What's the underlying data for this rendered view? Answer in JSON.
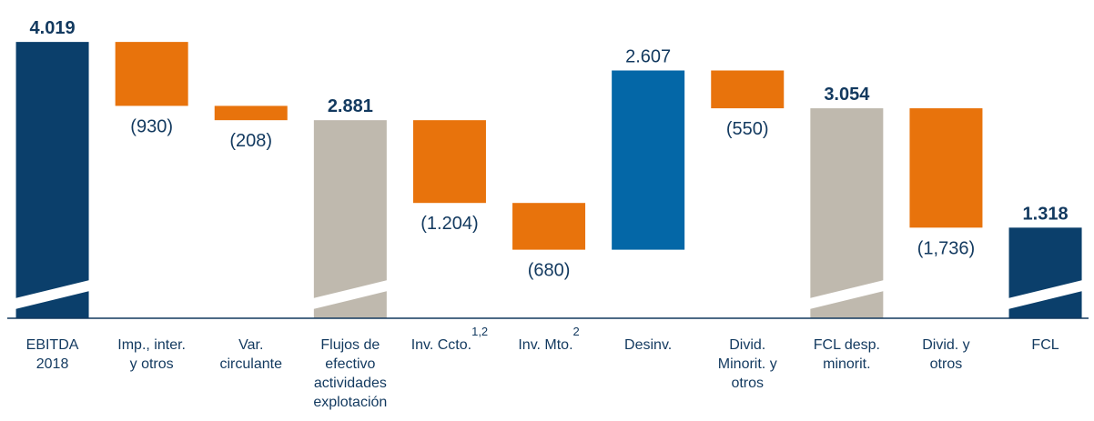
{
  "chart_data": {
    "type": "waterfall",
    "categories": [
      "EBITDA\n2018",
      "Imp., inter.\ny otros",
      "Var.\ncirculante",
      "Flujos de\nefectivo\nactividades\nexplotación",
      "Inv. Ccto.",
      "Inv. Mto.",
      "Desinv.",
      "Divid.\nMinorit. y\notros",
      "FCL desp.\nminorit.",
      "Divid. y\notros",
      "FCL"
    ],
    "footnotes": [
      null,
      null,
      null,
      null,
      "1,2",
      "2",
      null,
      null,
      null,
      null,
      null
    ],
    "values": [
      4019,
      -930,
      -208,
      2881,
      -1204,
      -680,
      2607,
      -550,
      3054,
      -1736,
      1318
    ],
    "value_labels": [
      "4.019",
      "(930)",
      "(208)",
      "2.881",
      "(1.204)",
      "(680)",
      "2.607",
      "(550)",
      "3.054",
      "(1,736)",
      "1.318"
    ],
    "totals": [
      true,
      false,
      false,
      true,
      false,
      false,
      false,
      false,
      true,
      false,
      true
    ],
    "colors": [
      "#0b3f6b",
      "#e8730c",
      "#e8730c",
      "#bfb9ae",
      "#e8730c",
      "#e8730c",
      "#0467a7",
      "#e8730c",
      "#bfb9ae",
      "#e8730c",
      "#0b3f6b"
    ],
    "ylim": [
      0,
      4100
    ]
  }
}
